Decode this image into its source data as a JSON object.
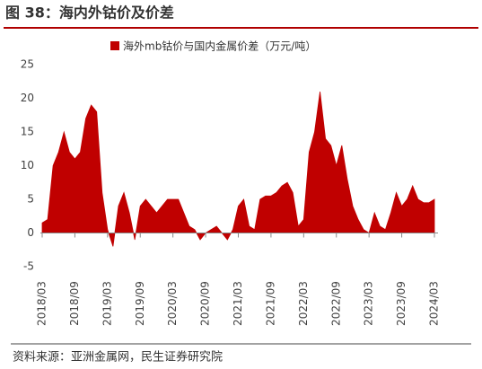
{
  "title": "图 38：海内外钴价及价差",
  "chart_data": {
    "type": "area",
    "legend_position": "top",
    "categories": [
      "2018/03",
      null,
      null,
      null,
      null,
      null,
      "2018/09",
      null,
      null,
      null,
      null,
      null,
      "2019/03",
      null,
      null,
      null,
      null,
      null,
      "2019/09",
      null,
      null,
      null,
      null,
      null,
      "2020/03",
      null,
      null,
      null,
      null,
      null,
      "2020/09",
      null,
      null,
      null,
      null,
      null,
      "2021/03",
      null,
      null,
      null,
      null,
      null,
      "2021/09",
      null,
      null,
      null,
      null,
      null,
      "2022/03",
      null,
      null,
      null,
      null,
      null,
      "2022/09",
      null,
      null,
      null,
      null,
      null,
      "2023/03",
      null,
      null,
      null,
      null,
      null,
      "2023/09",
      null,
      null,
      null,
      null,
      null,
      "2024/03"
    ],
    "series": [
      {
        "name": "海外mb钴价与国内金属价差（万元/吨）",
        "color": "#c00000",
        "values": [
          1.5,
          2,
          10,
          12,
          15,
          12,
          11,
          12,
          17,
          19,
          18,
          6,
          0.5,
          -2,
          4,
          6,
          3,
          -1,
          4,
          5,
          4,
          3,
          4,
          5,
          5,
          5,
          3,
          1,
          0.5,
          -1,
          0,
          0.5,
          1,
          0,
          -1,
          0.5,
          4,
          5,
          1,
          0.5,
          5,
          5.5,
          5.5,
          6,
          7,
          7.5,
          6,
          1,
          2,
          12,
          15,
          21,
          14,
          13,
          10,
          13,
          8,
          4,
          2,
          0.5,
          0,
          3,
          1,
          0.5,
          3,
          6,
          4,
          5,
          7,
          5,
          4.5,
          4.5,
          5
        ]
      }
    ],
    "ylim": [
      -5,
      25
    ],
    "yticks": [
      -5,
      0,
      5,
      10,
      15,
      20,
      25
    ],
    "grid": false
  },
  "source": "资料来源：亚洲金属网，民生证券研究院"
}
